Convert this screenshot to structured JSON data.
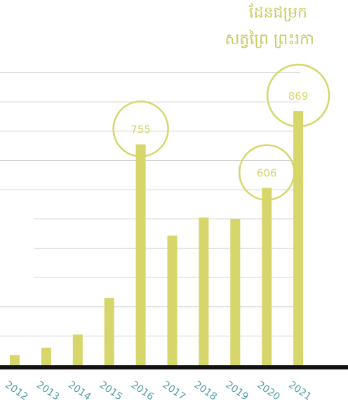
{
  "chart_data": {
    "type": "bar",
    "title_lines": [
      "ដែនជម្រក",
      "សត្វព្រៃ ព្រះរកា"
    ],
    "categories": [
      "2012",
      "2013",
      "2014",
      "2015",
      "2016",
      "2017",
      "2018",
      "2019",
      "2020",
      "2021"
    ],
    "values": [
      35,
      60,
      105,
      230,
      755,
      443,
      505,
      500,
      606,
      869
    ],
    "highlighted": [
      {
        "category": "2016",
        "label": "755"
      },
      {
        "category": "2020",
        "label": "606"
      },
      {
        "category": "2021",
        "label": "869"
      }
    ],
    "ylim": [
      0,
      1000
    ],
    "grid": true,
    "colors": {
      "bar": "#d6d66a",
      "circle": "#d6d66a",
      "circle_label": "#d6d66a",
      "tick_label": "#4f9da6",
      "grid": "#d4d4d4",
      "baseline": "#111111"
    }
  }
}
